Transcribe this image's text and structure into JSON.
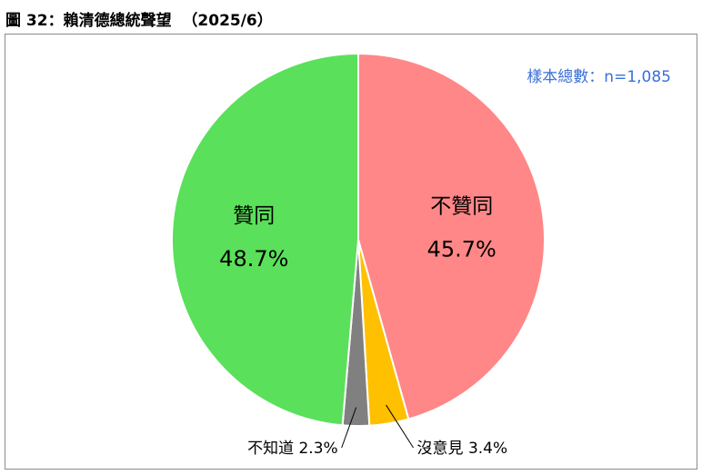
{
  "figure": {
    "title": "圖 32：賴清德總統聲望  （2025/6）",
    "sample_note": "樣本總數：n=1,085"
  },
  "chart_data": {
    "type": "pie",
    "title": "賴清德總統聲望",
    "slices": [
      {
        "name": "不贊同",
        "value": 45.7,
        "label": "45.7%",
        "color": "#ff8787"
      },
      {
        "name": "沒意見",
        "value": 3.4,
        "label": "3.4%",
        "color": "#ffc000"
      },
      {
        "name": "不知道",
        "value": 2.3,
        "label": "2.3%",
        "color": "#808080"
      },
      {
        "name": "贊同",
        "value": 48.7,
        "label": "48.7%",
        "color": "#5ae05a"
      }
    ],
    "start": "12 o'clock",
    "direction": "clockwise"
  }
}
